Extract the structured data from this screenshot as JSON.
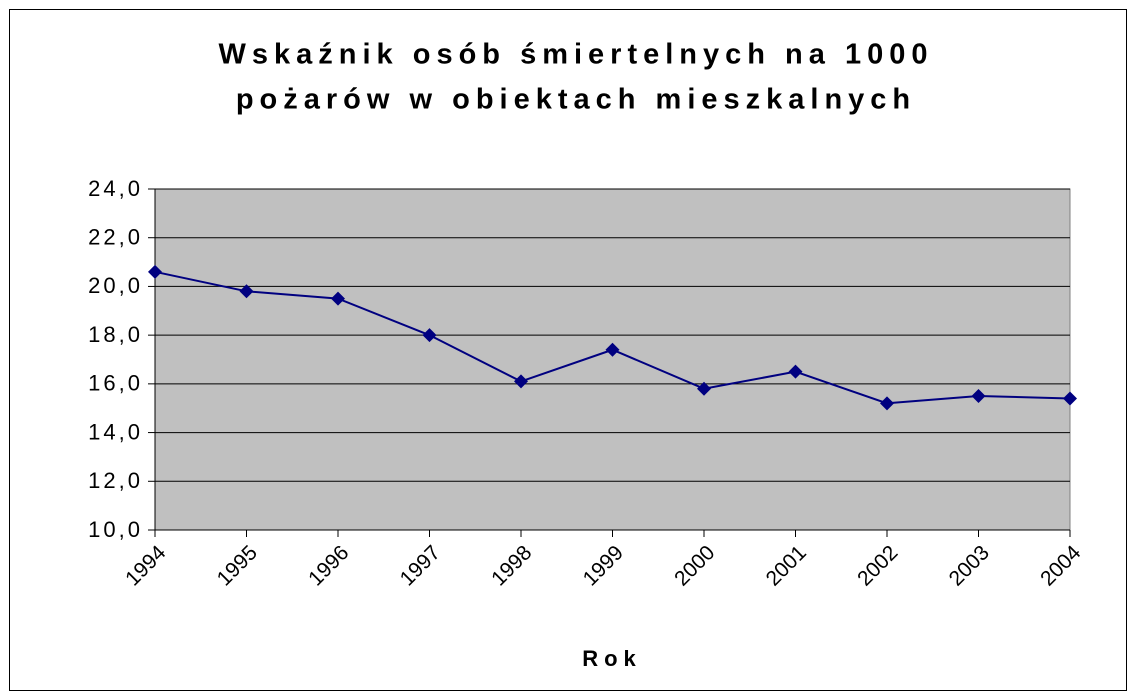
{
  "chart_data": {
    "type": "line",
    "title": [
      "Wskaźnik osób śmiertelnych na 1000",
      "pożarów w obiektach mieszkalnych"
    ],
    "x_label": "Rok",
    "categories": [
      "1994",
      "1995",
      "1996",
      "1997",
      "1998",
      "1999",
      "2000",
      "2001",
      "2002",
      "2003",
      "2004"
    ],
    "series": [
      {
        "color": "#000080",
        "values": [
          20.6,
          19.8,
          19.5,
          18.0,
          16.1,
          17.4,
          15.8,
          16.5,
          15.2,
          15.5,
          15.4
        ]
      }
    ],
    "ylim": [
      10,
      24
    ],
    "yticks": [
      {
        "value": 10,
        "label": "10,0"
      },
      {
        "value": 12,
        "label": "12,0"
      },
      {
        "value": 14,
        "label": "14,0"
      },
      {
        "value": 16,
        "label": "16,0"
      },
      {
        "value": 18,
        "label": "18,0"
      },
      {
        "value": 20,
        "label": "20,0"
      },
      {
        "value": 22,
        "label": "22,0"
      },
      {
        "value": 24,
        "label": "24,0"
      }
    ],
    "grid": true,
    "plot_background": "#c0c0c0"
  }
}
